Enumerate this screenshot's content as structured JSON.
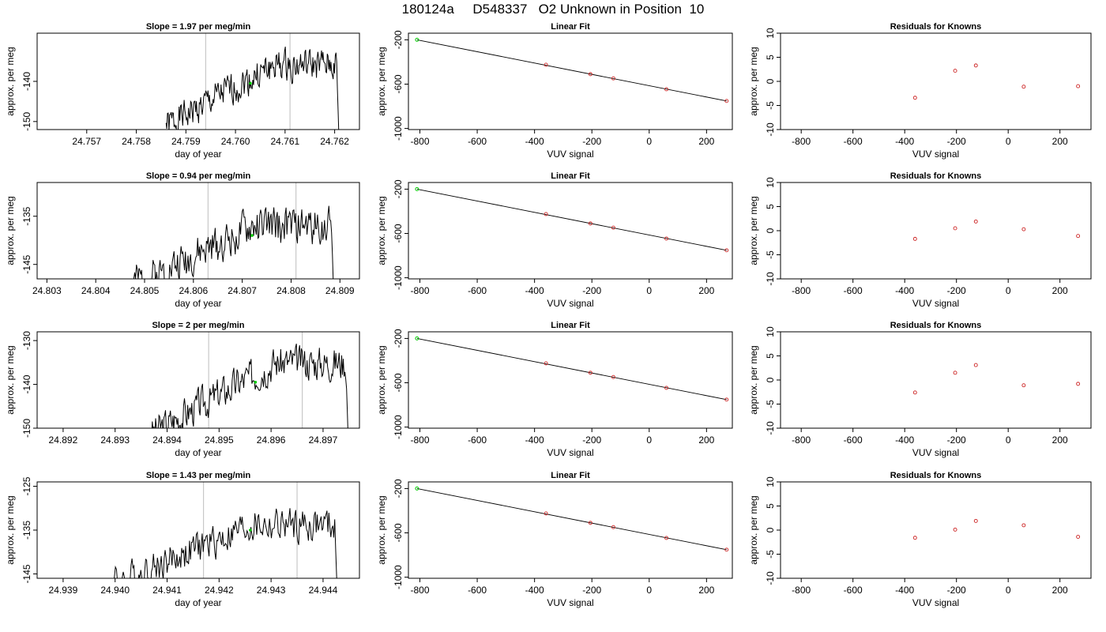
{
  "figure_title": "180124a     D548337   O2 Unknown in Position  10",
  "colors": {
    "trace": "#000000",
    "marker": "#00cc00",
    "residual": "#cc2222",
    "window": "#c8c8c8"
  },
  "chart_data": [
    {
      "type": "line",
      "panel": "timeseries",
      "title": "Slope =  1.97  per meg/min",
      "xlabel": "day of year",
      "ylabel": "approx. per meg",
      "xlim": [
        24.756,
        24.7625
      ],
      "ylim": [
        -152,
        -128
      ],
      "xticks": [
        "24.757",
        "24.758",
        "24.759",
        "24.760",
        "24.761",
        "24.762"
      ],
      "yticks": [
        -150,
        -140
      ],
      "window": [
        24.7594,
        24.7611
      ],
      "marker": [
        24.7603,
        -140.5
      ],
      "trace_start": 24.7586,
      "trace_end": 24.7621,
      "base": -142,
      "rise": 6,
      "seed": 1
    },
    {
      "type": "line",
      "panel": "linear_fit",
      "title": "Linear Fit",
      "xlabel": "VUV signal",
      "ylabel": "approx. per meg",
      "xlim": [
        -840,
        290
      ],
      "ylim": [
        -1010,
        -140
      ],
      "xticks": [
        -800,
        -600,
        -400,
        -200,
        0,
        200
      ],
      "yticks": [
        -200,
        -600,
        -1000
      ],
      "green_point": [
        -810,
        -200
      ],
      "points": [
        [
          -360,
          -425
        ],
        [
          -205,
          -510
        ],
        [
          -125,
          -548
        ],
        [
          60,
          -646
        ],
        [
          270,
          -752
        ]
      ]
    },
    {
      "type": "scatter",
      "panel": "residuals",
      "title": "Residuals for Knowns",
      "xlabel": "VUV signal",
      "ylabel": "approx. per meg",
      "xlim": [
        -880,
        320
      ],
      "ylim": [
        -10,
        10
      ],
      "xticks": [
        -800,
        -600,
        -400,
        -200,
        0,
        200
      ],
      "yticks": [
        -10,
        -5,
        0,
        5,
        10
      ],
      "points": [
        [
          -360,
          -3.4
        ],
        [
          -205,
          2.2
        ],
        [
          -125,
          3.3
        ],
        [
          60,
          -1.1
        ],
        [
          270,
          -1.0
        ]
      ]
    },
    {
      "type": "line",
      "panel": "timeseries",
      "title": "Slope =  0.94  per meg/min",
      "xlabel": "day of year",
      "ylabel": "approx. per meg",
      "xlim": [
        24.8028,
        24.8094
      ],
      "ylim": [
        -148,
        -128
      ],
      "xticks": [
        "24.803",
        "24.804",
        "24.805",
        "24.806",
        "24.807",
        "24.808",
        "24.809"
      ],
      "yticks": [
        -145,
        -135
      ],
      "window": [
        24.8063,
        24.8081
      ],
      "marker": [
        24.8072,
        -139
      ],
      "trace_start": 24.8046,
      "trace_end": 24.8089,
      "base": -141,
      "rise": 4,
      "seed": 2
    },
    {
      "type": "line",
      "panel": "linear_fit",
      "title": "Linear Fit",
      "xlabel": "VUV signal",
      "ylabel": "approx. per meg",
      "xlim": [
        -840,
        290
      ],
      "ylim": [
        -1010,
        -140
      ],
      "xticks": [
        -800,
        -600,
        -400,
        -200,
        0,
        200
      ],
      "yticks": [
        -200,
        -600,
        -1000
      ],
      "green_point": [
        -810,
        -200
      ],
      "points": [
        [
          -360,
          -425
        ],
        [
          -205,
          -510
        ],
        [
          -125,
          -548
        ],
        [
          60,
          -646
        ],
        [
          270,
          -752
        ]
      ]
    },
    {
      "type": "scatter",
      "panel": "residuals",
      "title": "Residuals for Knowns",
      "xlabel": "VUV signal",
      "ylabel": "approx. per meg",
      "xlim": [
        -880,
        320
      ],
      "ylim": [
        -10,
        10
      ],
      "xticks": [
        -800,
        -600,
        -400,
        -200,
        0,
        200
      ],
      "yticks": [
        -10,
        -5,
        0,
        5,
        10
      ],
      "points": [
        [
          -360,
          -1.7
        ],
        [
          -205,
          0.5
        ],
        [
          -125,
          1.9
        ],
        [
          60,
          0.3
        ],
        [
          270,
          -1.1
        ]
      ]
    },
    {
      "type": "line",
      "panel": "timeseries",
      "title": "Slope =  2  per meg/min",
      "xlabel": "day of year",
      "ylabel": "approx. per meg",
      "xlim": [
        24.8915,
        24.8977
      ],
      "ylim": [
        -150,
        -128
      ],
      "xticks": [
        "24.892",
        "24.893",
        "24.894",
        "24.895",
        "24.896",
        "24.897"
      ],
      "yticks": [
        -150,
        -140,
        -130
      ],
      "window": [
        24.8948,
        24.8966
      ],
      "marker": [
        24.8957,
        -139.5
      ],
      "trace_start": 24.8937,
      "trace_end": 24.8975,
      "base": -142,
      "rise": 7,
      "seed": 3
    },
    {
      "type": "line",
      "panel": "linear_fit",
      "title": "Linear Fit",
      "xlabel": "VUV signal",
      "ylabel": "approx. per meg",
      "xlim": [
        -840,
        290
      ],
      "ylim": [
        -1010,
        -140
      ],
      "xticks": [
        -800,
        -600,
        -400,
        -200,
        0,
        200
      ],
      "yticks": [
        -200,
        -600,
        -1000
      ],
      "green_point": [
        -810,
        -200
      ],
      "points": [
        [
          -360,
          -425
        ],
        [
          -205,
          -510
        ],
        [
          -125,
          -548
        ],
        [
          60,
          -646
        ],
        [
          270,
          -752
        ]
      ]
    },
    {
      "type": "scatter",
      "panel": "residuals",
      "title": "Residuals for Knowns",
      "xlabel": "VUV signal",
      "ylabel": "approx. per meg",
      "xlim": [
        -880,
        320
      ],
      "ylim": [
        -10,
        10
      ],
      "xticks": [
        -800,
        -600,
        -400,
        -200,
        0,
        200
      ],
      "yticks": [
        -10,
        -5,
        0,
        5,
        10
      ],
      "points": [
        [
          -360,
          -2.6
        ],
        [
          -205,
          1.5
        ],
        [
          -125,
          3.1
        ],
        [
          60,
          -1.1
        ],
        [
          270,
          -0.8
        ]
      ]
    },
    {
      "type": "line",
      "panel": "timeseries",
      "title": "Slope =  1.43  per meg/min",
      "xlabel": "day of year",
      "ylabel": "approx. per meg",
      "xlim": [
        24.9385,
        24.9447
      ],
      "ylim": [
        -146,
        -124
      ],
      "xticks": [
        "24.939",
        "24.940",
        "24.941",
        "24.942",
        "24.943",
        "24.944"
      ],
      "yticks": [
        -145,
        -135,
        -125
      ],
      "window": [
        24.9417,
        24.9435
      ],
      "marker": [
        24.9426,
        -135
      ],
      "trace_start": 24.9398,
      "trace_end": 24.9443,
      "base": -139,
      "rise": 5,
      "seed": 4
    },
    {
      "type": "line",
      "panel": "linear_fit",
      "title": "Linear Fit",
      "xlabel": "VUV signal",
      "ylabel": "approx. per meg",
      "xlim": [
        -840,
        290
      ],
      "ylim": [
        -1010,
        -140
      ],
      "xticks": [
        -800,
        -600,
        -400,
        -200,
        0,
        200
      ],
      "yticks": [
        -200,
        -600,
        -1000
      ],
      "green_point": [
        -810,
        -200
      ],
      "points": [
        [
          -360,
          -425
        ],
        [
          -205,
          -510
        ],
        [
          -125,
          -548
        ],
        [
          60,
          -646
        ],
        [
          270,
          -752
        ]
      ]
    },
    {
      "type": "scatter",
      "panel": "residuals",
      "title": "Residuals for Knowns",
      "xlabel": "VUV signal",
      "ylabel": "approx. per meg",
      "xlim": [
        -880,
        320
      ],
      "ylim": [
        -10,
        10
      ],
      "xticks": [
        -800,
        -600,
        -400,
        -200,
        0,
        200
      ],
      "yticks": [
        -10,
        -5,
        0,
        5,
        10
      ],
      "points": [
        [
          -360,
          -1.6
        ],
        [
          -205,
          0.1
        ],
        [
          -125,
          1.9
        ],
        [
          60,
          1.0
        ],
        [
          270,
          -1.4
        ]
      ]
    }
  ]
}
